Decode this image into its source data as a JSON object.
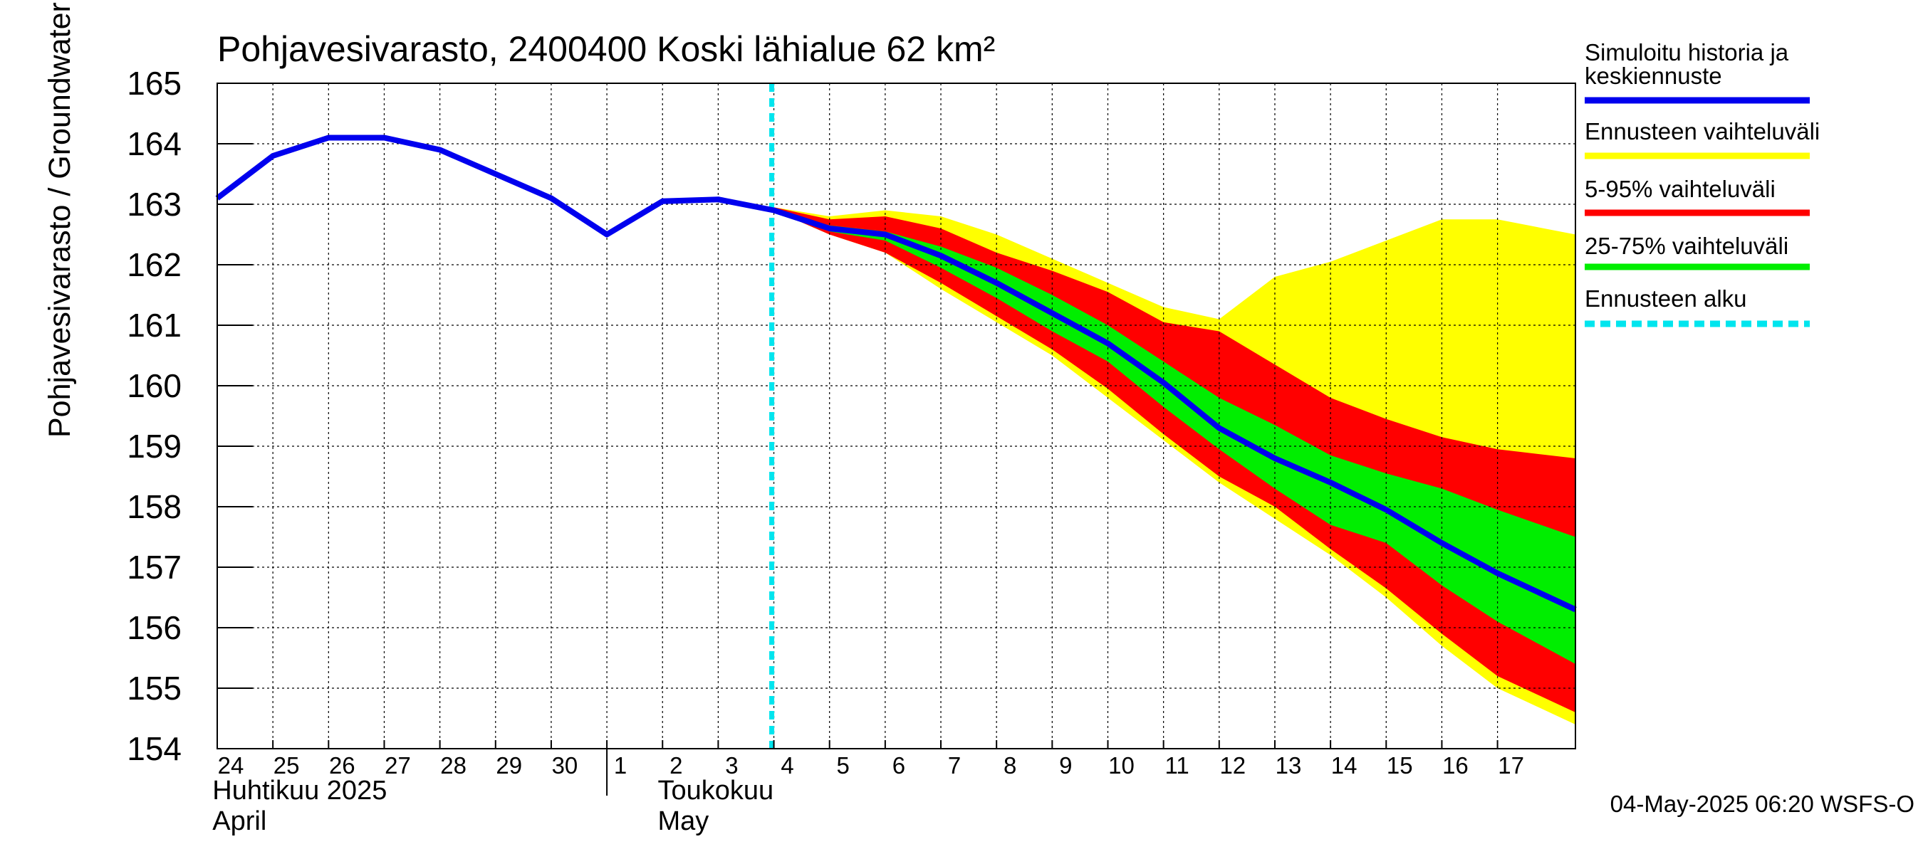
{
  "chart_data": {
    "type": "area",
    "title": "Pohjavesivarasto, 2400400 Koski lähialue 62 km²",
    "ylabel": "Pohjavesivarasto / Groundwater storage   mm",
    "ylim": [
      154,
      165
    ],
    "yticks": [
      154,
      155,
      156,
      157,
      158,
      159,
      160,
      161,
      162,
      163,
      164,
      165
    ],
    "xlim": [
      0,
      24.4
    ],
    "xticks": [
      {
        "x": 0,
        "label": "24"
      },
      {
        "x": 1,
        "label": "25"
      },
      {
        "x": 2,
        "label": "26"
      },
      {
        "x": 3,
        "label": "27"
      },
      {
        "x": 4,
        "label": "28"
      },
      {
        "x": 5,
        "label": "29"
      },
      {
        "x": 6,
        "label": "30"
      },
      {
        "x": 7,
        "label": "1"
      },
      {
        "x": 8,
        "label": "2"
      },
      {
        "x": 9,
        "label": "3"
      },
      {
        "x": 10,
        "label": "4"
      },
      {
        "x": 11,
        "label": "5"
      },
      {
        "x": 12,
        "label": "6"
      },
      {
        "x": 13,
        "label": "7"
      },
      {
        "x": 14,
        "label": "8"
      },
      {
        "x": 15,
        "label": "9"
      },
      {
        "x": 16,
        "label": "10"
      },
      {
        "x": 17,
        "label": "11"
      },
      {
        "x": 18,
        "label": "12"
      },
      {
        "x": 19,
        "label": "13"
      },
      {
        "x": 20,
        "label": "14"
      },
      {
        "x": 21,
        "label": "15"
      },
      {
        "x": 22,
        "label": "16"
      },
      {
        "x": 23,
        "label": "17"
      }
    ],
    "month_labels": [
      {
        "x": -0.15,
        "line1": "Huhtikuu  2025",
        "line2": "April"
      },
      {
        "x": 7.85,
        "line1": "Toukokuu",
        "line2": "May"
      }
    ],
    "month_divider_x": 7,
    "forecast_start_x": 10,
    "grid": true,
    "legend_position": "right",
    "colors": {
      "history": "#0000ee",
      "range": "#ffff00",
      "p5_95": "#ff0000",
      "p25_75": "#00ee00",
      "forecast_start": "#00e5ee",
      "grid": "#000000"
    },
    "series": [
      {
        "name": "Simuloitu historia ja keskiennuste",
        "x": [
          0,
          1,
          2,
          3,
          4,
          5,
          6,
          7,
          8,
          9,
          10,
          11,
          12,
          13,
          14,
          15,
          16,
          17,
          18,
          19,
          20,
          21,
          22,
          23,
          24.4
        ],
        "values": [
          163.1,
          163.8,
          164.1,
          164.1,
          163.9,
          163.5,
          163.1,
          162.5,
          163.05,
          163.08,
          162.9,
          162.6,
          162.5,
          162.15,
          161.7,
          161.2,
          160.7,
          160.05,
          159.3,
          158.8,
          158.4,
          157.95,
          157.4,
          156.9,
          156.3
        ]
      }
    ],
    "bands": [
      {
        "name": "Ennusteen vaihteluväli",
        "x": [
          10,
          11,
          12,
          13,
          14,
          15,
          16,
          17,
          18,
          19,
          20,
          21,
          22,
          23,
          24.4
        ],
        "upper": [
          162.95,
          162.8,
          162.9,
          162.8,
          162.5,
          162.1,
          161.7,
          161.3,
          161.1,
          161.8,
          162.05,
          162.4,
          162.75,
          162.75,
          162.5
        ],
        "lower": [
          162.9,
          162.5,
          162.2,
          161.6,
          161.05,
          160.5,
          159.8,
          159.1,
          158.4,
          157.8,
          157.2,
          156.5,
          155.7,
          155.0,
          154.4
        ]
      },
      {
        "name": "5-95% vaihteluväli",
        "x": [
          10,
          11,
          12,
          13,
          14,
          15,
          16,
          17,
          18,
          19,
          20,
          21,
          22,
          23,
          24.4
        ],
        "upper": [
          162.95,
          162.75,
          162.8,
          162.6,
          162.2,
          161.9,
          161.55,
          161.05,
          160.9,
          160.35,
          159.8,
          159.45,
          159.15,
          158.95,
          158.8
        ],
        "lower": [
          162.9,
          162.5,
          162.2,
          161.7,
          161.15,
          160.6,
          159.95,
          159.2,
          158.5,
          158.0,
          157.3,
          156.65,
          155.9,
          155.2,
          154.6
        ]
      },
      {
        "name": "25-75% vaihteluväli",
        "x": [
          10,
          11,
          12,
          13,
          14,
          15,
          16,
          17,
          18,
          19,
          20,
          21,
          22,
          23,
          24.4
        ],
        "upper": [
          162.9,
          162.65,
          162.55,
          162.3,
          161.95,
          161.5,
          161.0,
          160.4,
          159.8,
          159.35,
          158.85,
          158.55,
          158.3,
          157.95,
          157.5
        ],
        "lower": [
          162.9,
          162.55,
          162.4,
          161.95,
          161.45,
          160.9,
          160.4,
          159.65,
          158.95,
          158.3,
          157.7,
          157.4,
          156.7,
          156.1,
          155.4
        ]
      }
    ],
    "legend": [
      {
        "label": "Simuloitu historia ja keskiennuste",
        "color": "#0000ee",
        "style": "solid"
      },
      {
        "label": "Ennusteen vaihteluväli",
        "color": "#ffff00",
        "style": "solid"
      },
      {
        "label": "5-95% vaihteluväli",
        "color": "#ff0000",
        "style": "solid"
      },
      {
        "label": "25-75% vaihteluväli",
        "color": "#00ee00",
        "style": "solid"
      },
      {
        "label": "Ennusteen alku",
        "color": "#00e5ee",
        "style": "dashed"
      }
    ],
    "footer": "04-May-2025 06:20 WSFS-O"
  }
}
